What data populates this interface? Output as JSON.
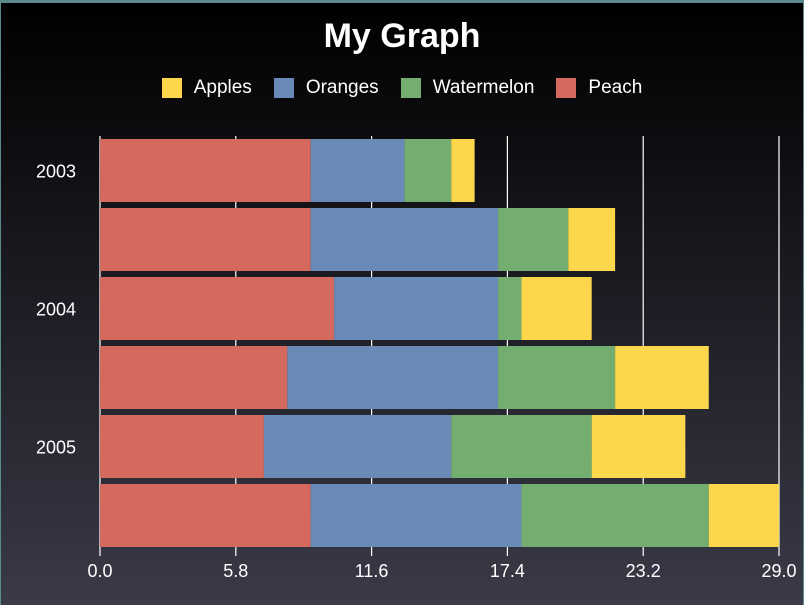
{
  "chart_data": {
    "type": "bar",
    "orientation": "horizontal",
    "stacked": true,
    "title": "My Graph",
    "xlabel": "",
    "ylabel": "",
    "xlim": [
      0,
      29.0
    ],
    "x_ticks": [
      "0.0",
      "5.8",
      "11.6",
      "17.4",
      "23.2",
      "29.0"
    ],
    "y_tick_labels": [
      "2003",
      "2004",
      "2005"
    ],
    "legend_position": "top",
    "grid": "vertical",
    "bars": 6,
    "series": [
      {
        "name": "Peach",
        "color": "#d5695d",
        "values": [
          9,
          9,
          10,
          8,
          7,
          9
        ]
      },
      {
        "name": "Oranges",
        "color": "#6a8bb8",
        "values": [
          4,
          8,
          7,
          9,
          8,
          9
        ]
      },
      {
        "name": "Watermelon",
        "color": "#73ad6f",
        "values": [
          2,
          3,
          1,
          5,
          6,
          8
        ]
      },
      {
        "name": "Apples",
        "color": "#fcd74c",
        "values": [
          1,
          2,
          3,
          4,
          4,
          3
        ]
      }
    ],
    "legend_order": [
      "Apples",
      "Oranges",
      "Watermelon",
      "Peach"
    ]
  }
}
